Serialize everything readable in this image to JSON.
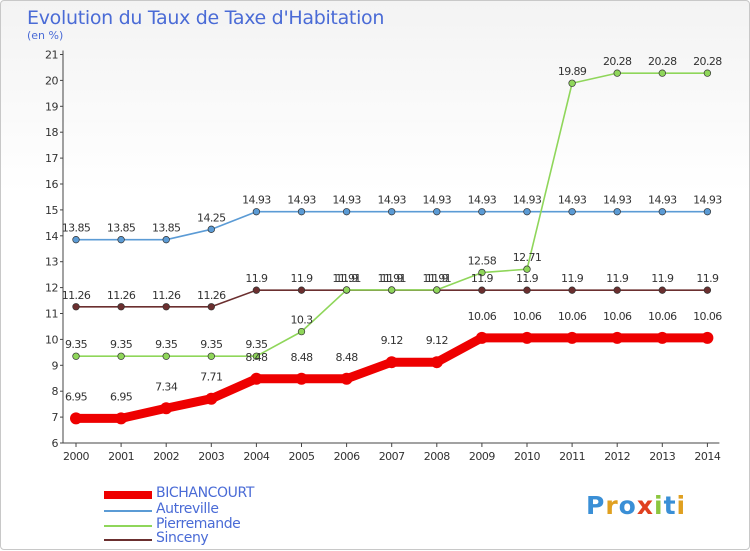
{
  "chart_data": {
    "type": "line",
    "title": "Evolution du Taux de Taxe d'Habitation",
    "subtitle": "(en %)",
    "x": [
      "2000",
      "2001",
      "2002",
      "2003",
      "2004",
      "2005",
      "2006",
      "2007",
      "2008",
      "2009",
      "2010",
      "2011",
      "2012",
      "2013",
      "2014"
    ],
    "ylim": [
      6,
      21
    ],
    "yticks": [
      6,
      7,
      8,
      9,
      10,
      11,
      12,
      13,
      14,
      15,
      16,
      17,
      18,
      19,
      20,
      21
    ],
    "grid": false,
    "legend_position": "bottom-left",
    "series": [
      {
        "name": "BICHANCOURT",
        "color": "#ee0000",
        "values": [
          6.95,
          6.95,
          7.34,
          7.71,
          8.48,
          8.48,
          8.48,
          9.12,
          9.12,
          10.06,
          10.06,
          10.06,
          10.06,
          10.06,
          10.06
        ],
        "labels": [
          "6.95",
          "6.95",
          "7.34",
          "7.71",
          "8.48",
          "8.48",
          "8.48",
          "9.12",
          "9.12",
          "10.06",
          "10.06",
          "10.06",
          "10.06",
          "10.06",
          "10.06"
        ]
      },
      {
        "name": "Autreville",
        "color": "#5b9bd5",
        "values": [
          13.85,
          13.85,
          13.85,
          14.25,
          14.93,
          14.93,
          14.93,
          14.93,
          14.93,
          14.93,
          14.93,
          14.93,
          14.93,
          14.93,
          14.93
        ],
        "labels": [
          "13.85",
          "13.85",
          "13.85",
          "14.25",
          "14.93",
          "14.93",
          "14.93",
          "14.93",
          "14.93",
          "14.93",
          "14.93",
          "14.93",
          "14.93",
          "14.93",
          "14.93"
        ]
      },
      {
        "name": "Pierremande",
        "color": "#8fd65a",
        "values": [
          9.35,
          9.35,
          9.35,
          9.35,
          9.35,
          10.3,
          11.91,
          11.91,
          11.91,
          12.58,
          12.71,
          19.89,
          20.28,
          20.28,
          20.28
        ],
        "labels": [
          "9.35",
          "9.35",
          "9.35",
          "9.35",
          "9.35",
          "10.3",
          "11.91",
          "11.91",
          "11.91",
          "12.58",
          "12.71",
          "19.89",
          "20.28",
          "20.28",
          "20.28"
        ]
      },
      {
        "name": "Sinceny",
        "color": "#6b2f2f",
        "values": [
          11.26,
          11.26,
          11.26,
          11.26,
          11.9,
          11.9,
          11.9,
          11.9,
          11.9,
          11.9,
          11.9,
          11.9,
          11.9,
          11.9,
          11.9
        ],
        "labels": [
          "11.26",
          "11.26",
          "11.26",
          "11.26",
          "11.9",
          "11.9",
          "11.9",
          "11.9",
          "11.9",
          "11.9",
          "11.9",
          "11.9",
          "11.9",
          "11.9",
          "11.9"
        ]
      }
    ]
  },
  "logo": {
    "text": "Proxiti"
  }
}
